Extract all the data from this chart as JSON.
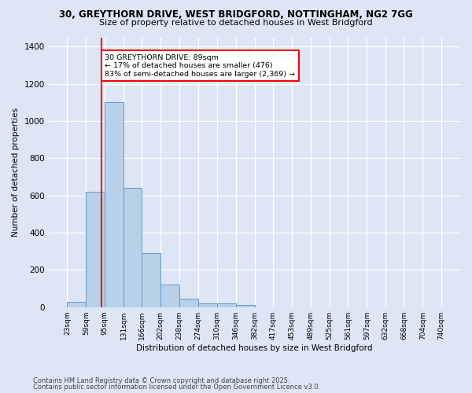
{
  "title1": "30, GREYTHORN DRIVE, WEST BRIDGFORD, NOTTINGHAM, NG2 7GG",
  "title2": "Size of property relative to detached houses in West Bridgford",
  "xlabel": "Distribution of detached houses by size in West Bridgford",
  "ylabel": "Number of detached properties",
  "bar_color": "#b8d0e8",
  "bar_edge_color": "#6699cc",
  "background_color": "#dce6f5",
  "grid_color": "#ffffff",
  "vline_x": 89,
  "vline_color": "red",
  "annotation_text": "30 GREYTHORN DRIVE: 89sqm\n← 17% of detached houses are smaller (476)\n83% of semi-detached houses are larger (2,369) →",
  "annotation_box_color": "white",
  "annotation_border_color": "red",
  "bin_edges": [
    23,
    59,
    95,
    131,
    166,
    202,
    238,
    274,
    310,
    346,
    382,
    417,
    453,
    489,
    525,
    561,
    597,
    632,
    668,
    704,
    740
  ],
  "bar_heights": [
    30,
    620,
    1100,
    640,
    290,
    120,
    47,
    20,
    20,
    12,
    0,
    0,
    0,
    0,
    0,
    0,
    0,
    0,
    0,
    0
  ],
  "ylim": [
    0,
    1450
  ],
  "yticks": [
    0,
    200,
    400,
    600,
    800,
    1000,
    1200,
    1400
  ],
  "footer1": "Contains HM Land Registry data © Crown copyright and database right 2025.",
  "footer2": "Contains public sector information licensed under the Open Government Licence v3.0."
}
